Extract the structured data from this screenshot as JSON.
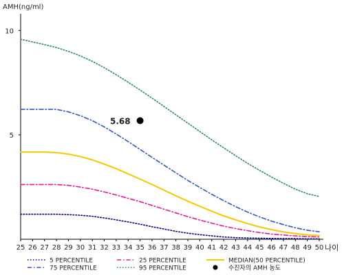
{
  "chart_data": {
    "type": "line",
    "title": "",
    "ylabel": "AMH(ng/ml)",
    "xlabel": "나이",
    "x": [
      25,
      26,
      27,
      28,
      29,
      30,
      31,
      32,
      33,
      34,
      35,
      36,
      37,
      38,
      39,
      40,
      41,
      42,
      43,
      44,
      45,
      46,
      47,
      48,
      49,
      50
    ],
    "xlim": [
      25,
      50
    ],
    "ylim": [
      0,
      10.8
    ],
    "yticks": [
      5,
      10
    ],
    "grid": false,
    "legend_position": "bottom",
    "series": [
      {
        "name": "5 PERCENTILE",
        "color": "#00008b",
        "dash": "dot",
        "values": [
          1.2,
          1.2,
          1.2,
          1.2,
          1.18,
          1.15,
          1.1,
          1.02,
          0.93,
          0.83,
          0.72,
          0.6,
          0.49,
          0.38,
          0.29,
          0.22,
          0.16,
          0.11,
          0.08,
          0.06,
          0.05,
          0.04,
          0.03,
          0.03,
          0.02,
          0.02
        ]
      },
      {
        "name": "25 PERCENTILE",
        "color": "#e8179a",
        "dash": "dashdot",
        "values": [
          2.62,
          2.62,
          2.62,
          2.62,
          2.58,
          2.5,
          2.4,
          2.27,
          2.12,
          1.96,
          1.8,
          1.62,
          1.44,
          1.26,
          1.08,
          0.92,
          0.77,
          0.63,
          0.51,
          0.41,
          0.32,
          0.25,
          0.2,
          0.16,
          0.13,
          0.11
        ]
      },
      {
        "name": "MEDIAN(50 PERCENTILE)",
        "color": "#f5c800",
        "dash": "solid",
        "values": [
          4.18,
          4.18,
          4.18,
          4.15,
          4.08,
          3.96,
          3.8,
          3.6,
          3.38,
          3.13,
          2.88,
          2.62,
          2.35,
          2.08,
          1.82,
          1.58,
          1.34,
          1.12,
          0.93,
          0.75,
          0.59,
          0.46,
          0.35,
          0.27,
          0.21,
          0.18
        ]
      },
      {
        "name": "75 PERCENTILE",
        "color": "#3354c4",
        "dash": "dashdot",
        "values": [
          6.22,
          6.22,
          6.22,
          6.22,
          6.1,
          5.92,
          5.68,
          5.38,
          5.04,
          4.68,
          4.3,
          3.92,
          3.55,
          3.18,
          2.82,
          2.48,
          2.15,
          1.85,
          1.56,
          1.3,
          1.07,
          0.87,
          0.7,
          0.55,
          0.43,
          0.36
        ]
      },
      {
        "name": "95 PERCENTILE",
        "color": "#2e8b57",
        "dash": "dot",
        "values": [
          9.58,
          9.45,
          9.32,
          9.18,
          9.0,
          8.78,
          8.52,
          8.22,
          7.88,
          7.52,
          7.15,
          6.76,
          6.36,
          5.96,
          5.56,
          5.16,
          4.76,
          4.38,
          4.0,
          3.64,
          3.3,
          2.98,
          2.68,
          2.4,
          2.18,
          2.05
        ]
      }
    ],
    "patient_point": {
      "name": "수진자의 AMH 농도",
      "x": 35,
      "y": 5.68,
      "label": "5.68",
      "color": "#000000"
    }
  }
}
